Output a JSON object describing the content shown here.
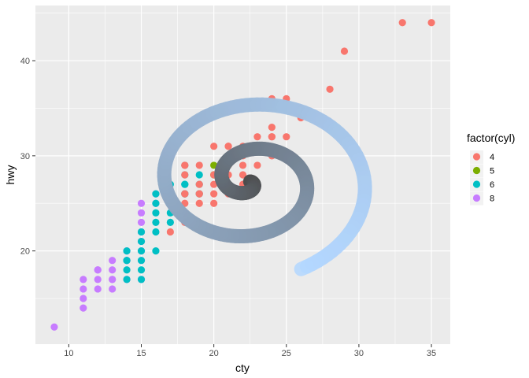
{
  "chart_data": {
    "type": "scatter",
    "xlabel": "cty",
    "ylabel": "hwy",
    "xlim": [
      7.7,
      36.3
    ],
    "ylim": [
      10.2,
      45.8
    ],
    "x_ticks": [
      10,
      15,
      20,
      25,
      30,
      35
    ],
    "y_ticks": [
      20,
      30,
      40
    ],
    "grid": true,
    "legend": {
      "title": "factor(cyl)",
      "placement": "right",
      "entries": [
        "4",
        "5",
        "6",
        "8"
      ]
    },
    "colors": {
      "4": "#F8766D",
      "5": "#7CAE00",
      "6": "#00BFC4",
      "8": "#C77CFF"
    },
    "series": [
      {
        "name": "4",
        "points": [
          [
            18,
            29
          ],
          [
            21,
            29
          ],
          [
            20,
            31
          ],
          [
            21,
            30
          ],
          [
            18,
            26
          ],
          [
            18,
            29
          ],
          [
            19,
            27
          ],
          [
            21,
            29
          ],
          [
            22,
            31
          ],
          [
            18,
            26
          ],
          [
            19,
            26
          ],
          [
            20,
            27
          ],
          [
            21,
            26
          ],
          [
            23,
            31
          ],
          [
            24,
            32
          ],
          [
            21,
            31
          ],
          [
            24,
            33
          ],
          [
            28,
            33
          ],
          [
            24,
            32
          ],
          [
            26,
            35
          ],
          [
            25,
            36
          ],
          [
            24,
            36
          ],
          [
            26,
            34
          ],
          [
            35,
            44
          ],
          [
            33,
            44
          ],
          [
            29,
            41
          ],
          [
            28,
            37
          ],
          [
            24,
            30
          ],
          [
            25,
            32
          ],
          [
            23,
            32
          ],
          [
            22,
            29
          ],
          [
            22,
            30
          ],
          [
            21,
            28
          ],
          [
            19,
            25
          ],
          [
            18,
            24
          ],
          [
            18,
            25
          ],
          [
            17,
            22
          ],
          [
            20,
            25
          ],
          [
            18,
            23
          ],
          [
            19,
            29
          ],
          [
            20,
            28
          ],
          [
            22,
            27
          ],
          [
            21,
            31
          ],
          [
            19,
            26
          ],
          [
            23,
            29
          ],
          [
            22,
            28
          ],
          [
            20,
            26
          ],
          [
            18,
            28
          ]
        ]
      },
      {
        "name": "5",
        "points": [
          [
            20,
            28
          ],
          [
            20,
            29
          ],
          [
            21,
            29
          ],
          [
            20,
            28
          ]
        ]
      },
      {
        "name": "6",
        "points": [
          [
            16,
            26
          ],
          [
            18,
            26
          ],
          [
            17,
            25
          ],
          [
            16,
            25
          ],
          [
            16,
            24
          ],
          [
            17,
            24
          ],
          [
            17,
            26
          ],
          [
            17,
            27
          ],
          [
            18,
            28
          ],
          [
            18,
            27
          ],
          [
            19,
            27
          ],
          [
            16,
            23
          ],
          [
            15,
            22
          ],
          [
            15,
            20
          ],
          [
            15,
            19
          ],
          [
            14,
            20
          ],
          [
            14,
            19
          ],
          [
            15,
            18
          ],
          [
            15,
            17
          ],
          [
            14,
            17
          ],
          [
            14,
            18
          ],
          [
            16,
            20
          ],
          [
            17,
            23
          ],
          [
            18,
            26
          ],
          [
            19,
            26
          ],
          [
            18,
            27
          ],
          [
            17,
            25
          ],
          [
            16,
            22
          ],
          [
            15,
            21
          ],
          [
            14,
            19
          ],
          [
            19,
            28
          ],
          [
            18,
            29
          ],
          [
            18,
            26
          ],
          [
            19,
            26
          ]
        ]
      },
      {
        "name": "8",
        "points": [
          [
            9,
            12
          ],
          [
            11,
            14
          ],
          [
            11,
            15
          ],
          [
            11,
            16
          ],
          [
            11,
            17
          ],
          [
            12,
            16
          ],
          [
            12,
            17
          ],
          [
            12,
            18
          ],
          [
            13,
            16
          ],
          [
            13,
            17
          ],
          [
            13,
            18
          ],
          [
            13,
            19
          ],
          [
            14,
            17
          ],
          [
            14,
            19
          ],
          [
            14,
            20
          ],
          [
            15,
            17
          ],
          [
            15,
            19
          ],
          [
            15,
            20
          ],
          [
            15,
            21
          ],
          [
            15,
            22
          ],
          [
            15,
            23
          ],
          [
            15,
            24
          ],
          [
            15,
            25
          ],
          [
            16,
            25
          ],
          [
            16,
            26
          ],
          [
            12,
            18
          ],
          [
            13,
            17
          ],
          [
            14,
            19
          ]
        ]
      }
    ],
    "annotation": {
      "type": "spiral",
      "center": [
        22.5,
        27.3
      ],
      "turns": 2,
      "color_from": "#4a4a4a",
      "color_to": "#b3d7ff"
    }
  }
}
